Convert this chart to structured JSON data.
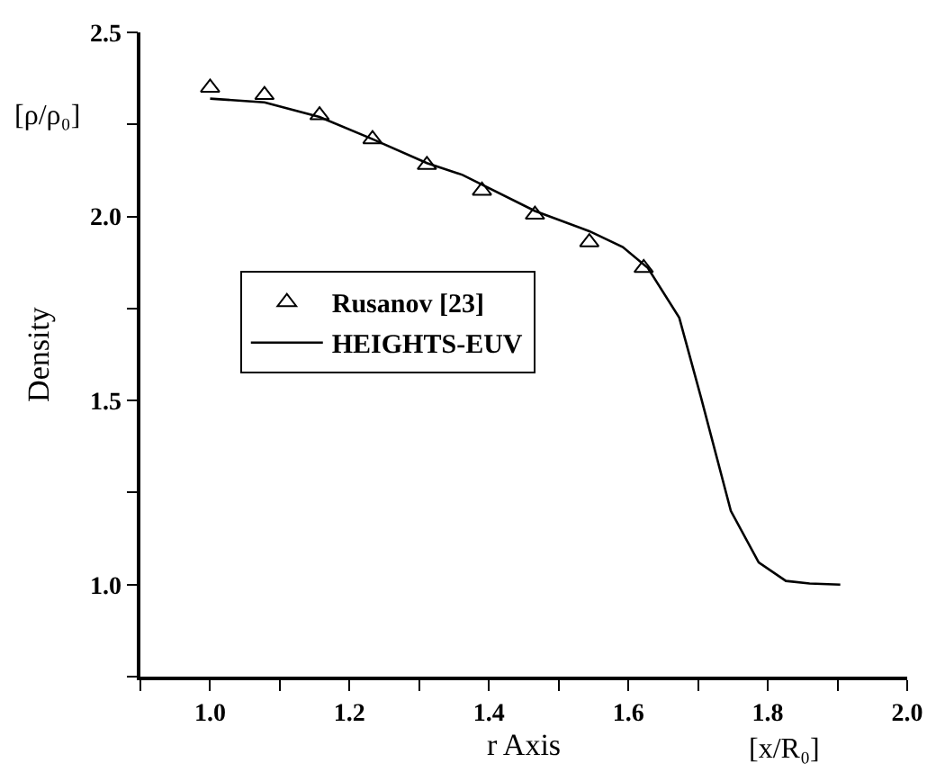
{
  "chart_data": {
    "type": "line",
    "xlabel": "r Axis",
    "ylabel": "Density",
    "annotations": [
      "[ρ/ρ₀]",
      "[x/R₀]"
    ],
    "xlim": [
      0.9,
      2.0
    ],
    "xticks": [
      {
        "value": 0.9,
        "label": null
      },
      {
        "value": 1,
        "label": "1.0"
      },
      {
        "value": 1.1,
        "label": null
      },
      1.2,
      {
        "value": 1.3,
        "label": null
      },
      1.4,
      {
        "value": 1.5,
        "label": null
      },
      1.6,
      {
        "value": 1.7,
        "label": null
      },
      1.8,
      {
        "value": 1.9,
        "label": null
      },
      {
        "value": 2,
        "label": "2.0"
      }
    ],
    "ylim": [
      0.75,
      2.5
    ],
    "yticks": [
      {
        "value": 0.75,
        "label": null
      },
      {
        "value": 1,
        "label": "1.0"
      },
      {
        "value": 1.25,
        "label": null
      },
      1.5,
      {
        "value": 1.75,
        "label": null
      },
      {
        "value": 2,
        "label": "2.0"
      },
      {
        "value": 2.25,
        "label": null
      },
      2.5
    ],
    "legend": "left",
    "series": [
      {
        "name": "Rusanov [23]",
        "type": "scatter",
        "marker": "triangle",
        "color": "#000000",
        "x": [
          1.0,
          1.078,
          1.157,
          1.233,
          1.311,
          1.39,
          1.466,
          1.544,
          1.622
        ],
        "values": [
          2.35,
          2.33,
          2.275,
          2.21,
          2.14,
          2.07,
          2.005,
          1.93,
          1.86
        ]
      },
      {
        "name": "HEIGHTS-EUV",
        "marker": "none",
        "line_style": "solid",
        "color": "#000000",
        "x": [
          1.0,
          1.078,
          1.157,
          1.233,
          1.311,
          1.362,
          1.466,
          1.544,
          1.592,
          1.628,
          1.673,
          1.704,
          1.747,
          1.787,
          1.826,
          1.86,
          1.904
        ],
        "values": [
          2.32,
          2.31,
          2.27,
          2.21,
          2.145,
          2.113,
          2.015,
          1.96,
          1.917,
          1.86,
          1.725,
          1.51,
          1.2,
          1.06,
          1.01,
          1.003,
          1.0
        ]
      }
    ]
  }
}
